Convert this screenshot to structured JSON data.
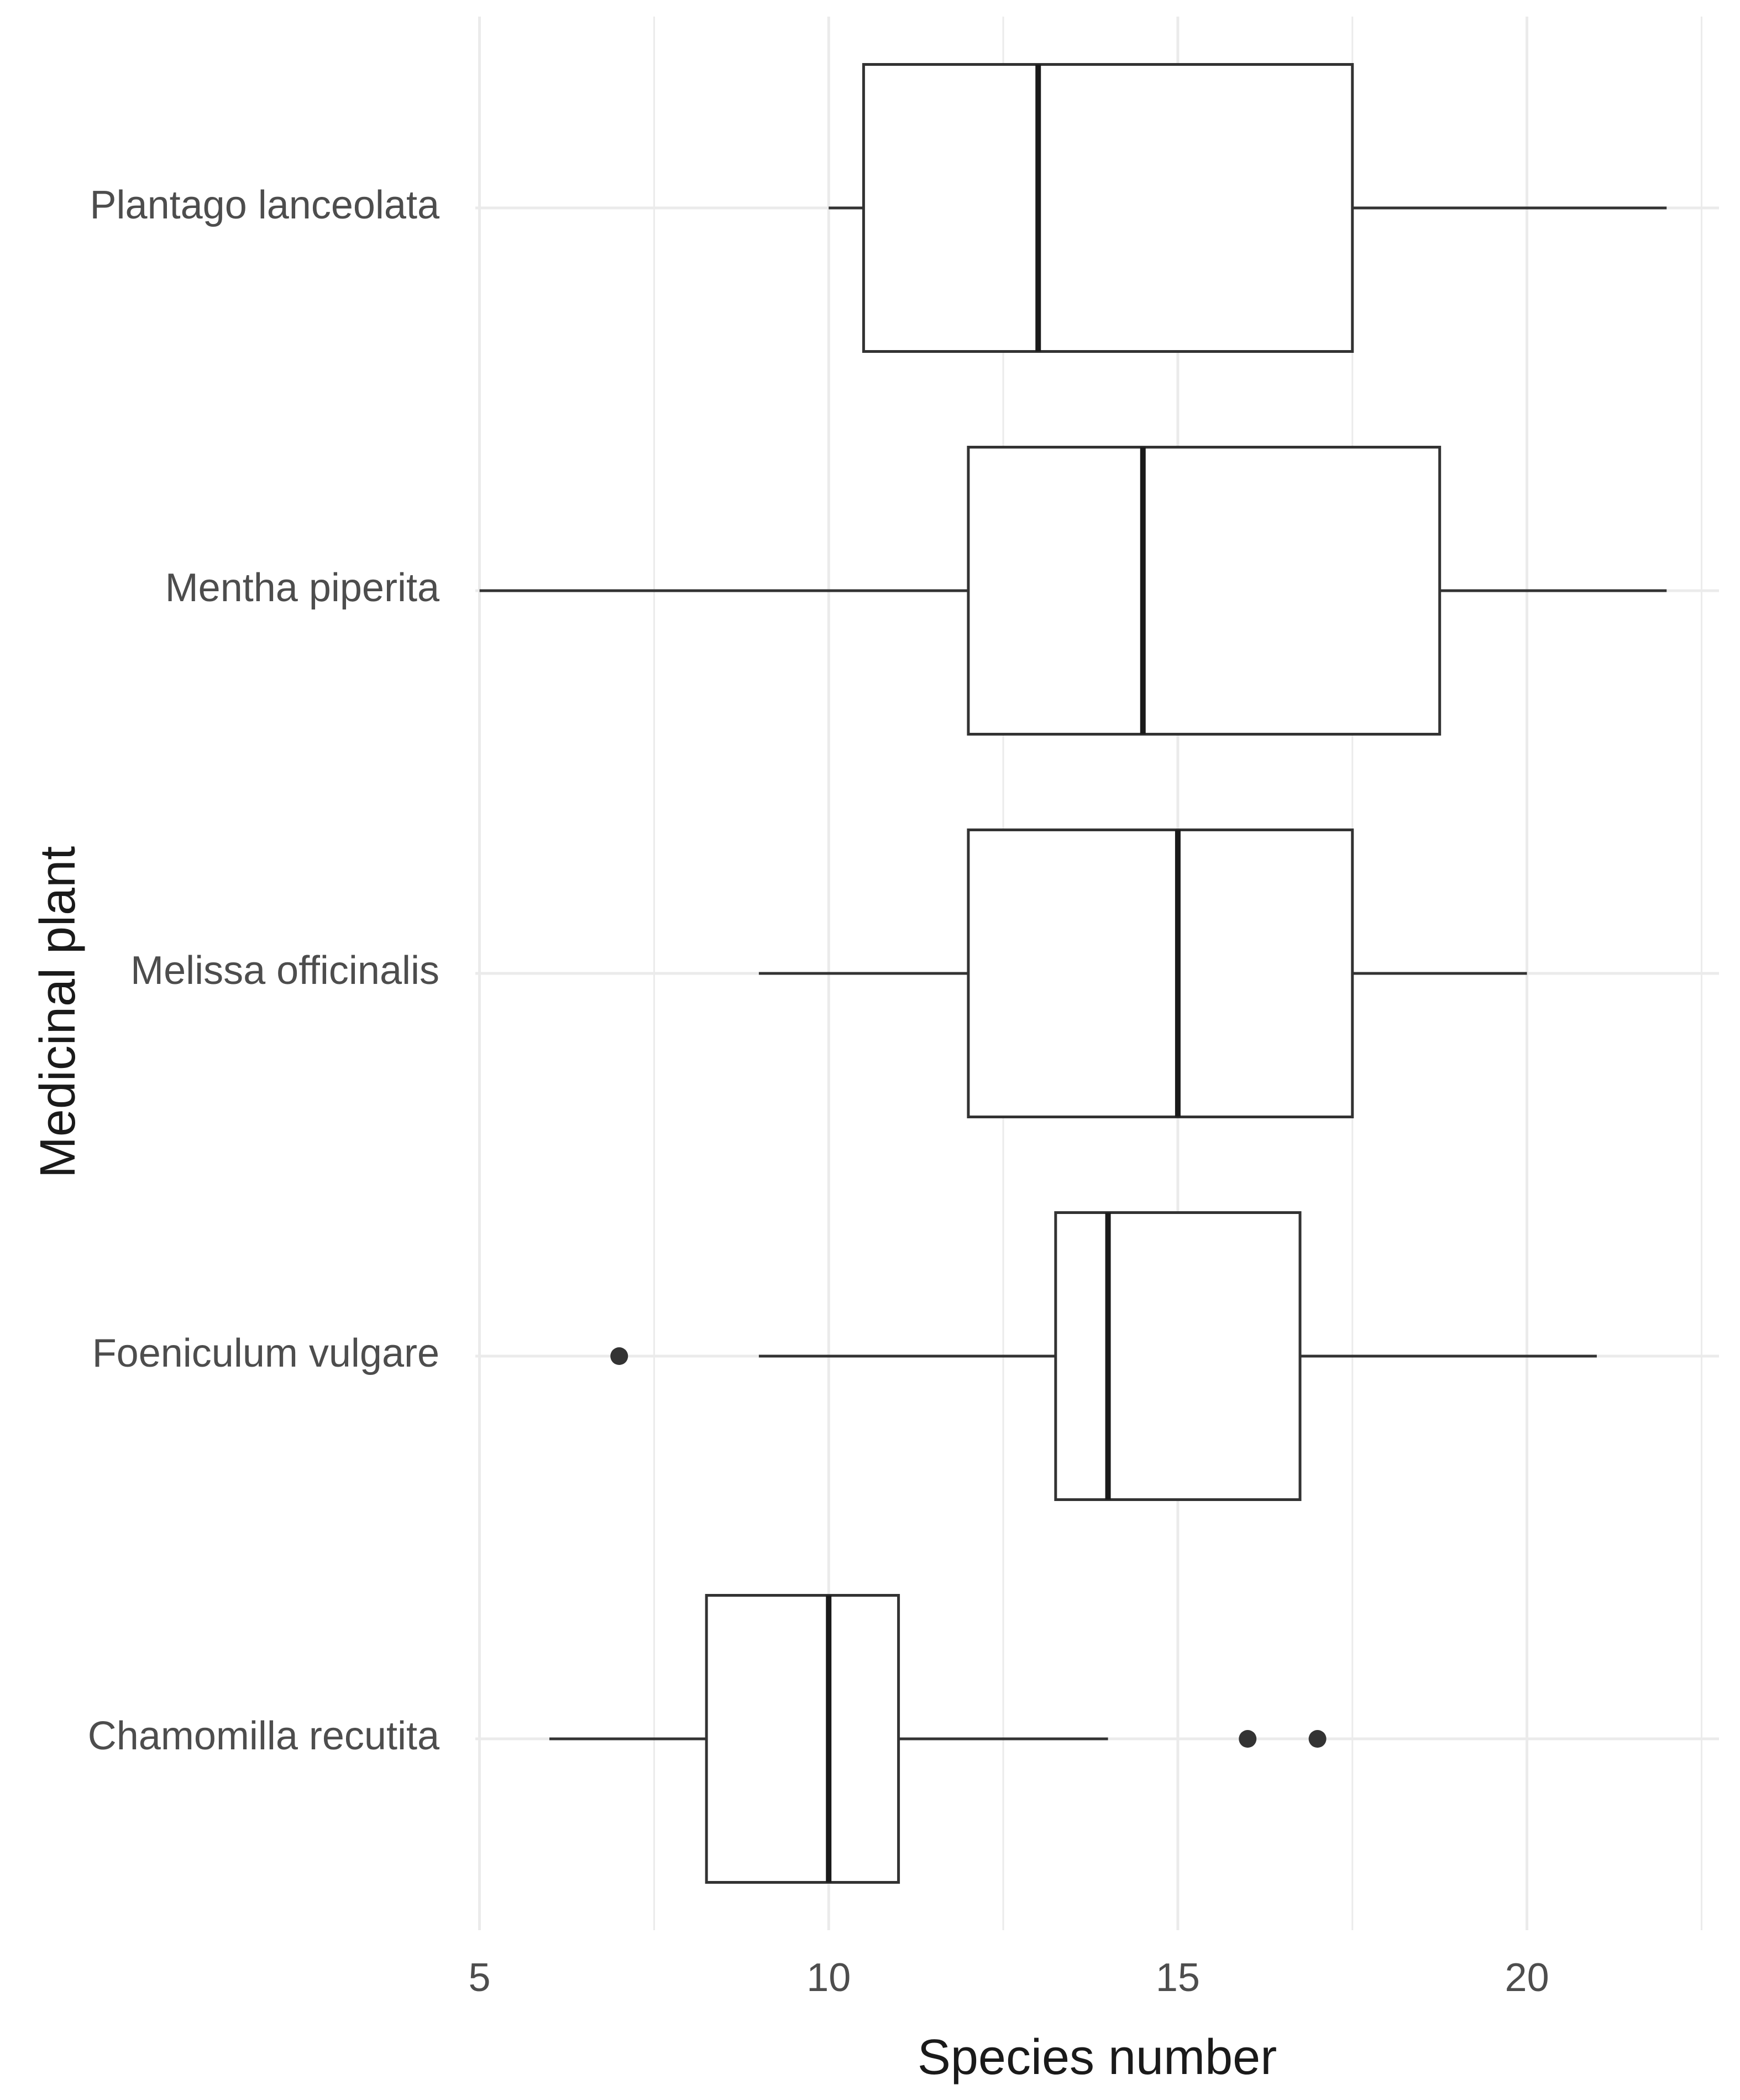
{
  "chart_data": {
    "type": "boxplot",
    "orientation": "horizontal",
    "title": "",
    "xlabel": "Species number",
    "ylabel": "Medicinal plant",
    "xlim": [
      4.94,
      22.75
    ],
    "x_ticks": [
      5,
      10,
      15,
      20
    ],
    "grid": true,
    "legend": "none",
    "colors": {
      "box_fill": "#ffffff",
      "box_stroke": "#333333",
      "median": "#1a1a1a",
      "grid": "#ebebeb",
      "outlier": "#333333"
    },
    "categories": [
      "Chamomilla recutita",
      "Foeniculum vulgare",
      "Melissa officinalis",
      "Mentha piperita",
      "Plantago lanceolata"
    ],
    "boxes": [
      {
        "category": "Chamomilla recutita",
        "whisker_low": 6,
        "q1": 8.25,
        "median": 10,
        "q3": 11,
        "whisker_high": 14,
        "outliers": [
          16,
          17
        ]
      },
      {
        "category": "Foeniculum vulgare",
        "whisker_low": 9,
        "q1": 13.25,
        "median": 14,
        "q3": 16.75,
        "whisker_high": 21,
        "outliers": [
          7
        ]
      },
      {
        "category": "Melissa officinalis",
        "whisker_low": 9,
        "q1": 12,
        "median": 15,
        "q3": 17.5,
        "whisker_high": 20,
        "outliers": []
      },
      {
        "category": "Mentha piperita",
        "whisker_low": 5,
        "q1": 12,
        "median": 14.5,
        "q3": 18.75,
        "whisker_high": 22,
        "outliers": []
      },
      {
        "category": "Plantago lanceolata",
        "whisker_low": 10,
        "q1": 10.5,
        "median": 13,
        "q3": 17.5,
        "whisker_high": 22,
        "outliers": []
      }
    ]
  }
}
